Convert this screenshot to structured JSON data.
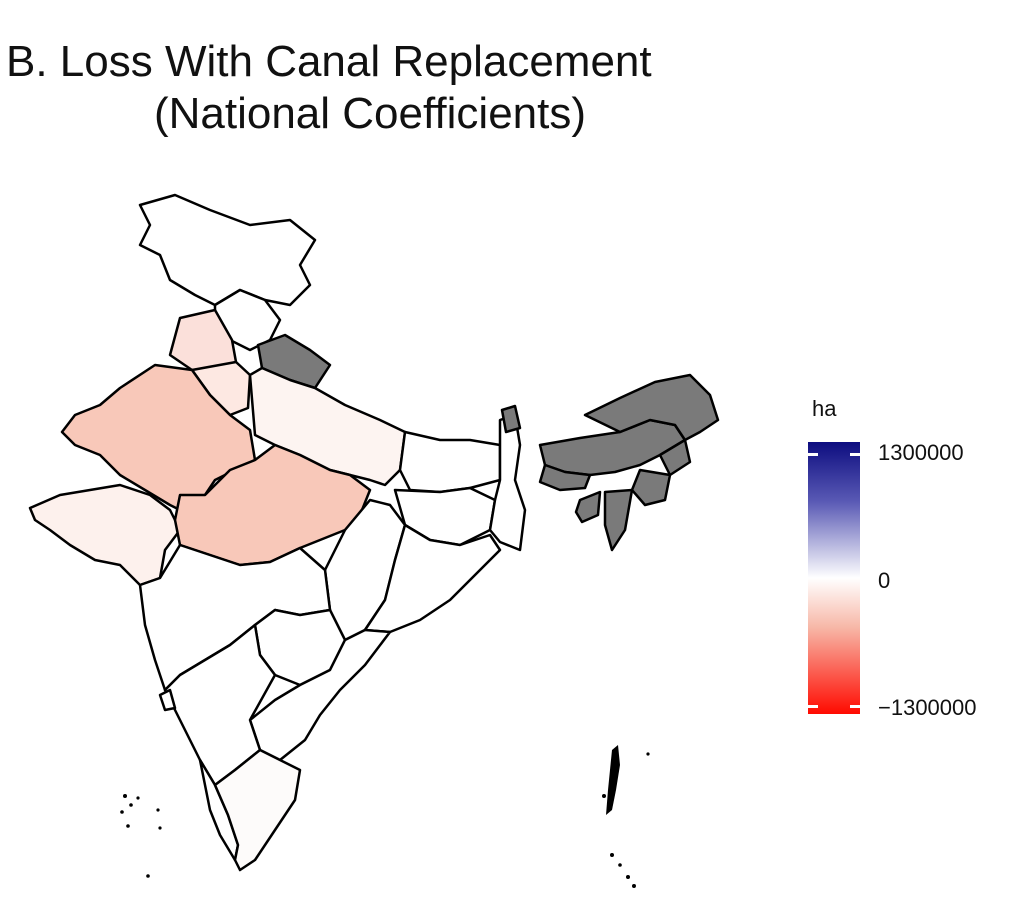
{
  "title_line1": "B. Loss With Canal Replacement",
  "title_line2": "(National Coefficients)",
  "legend": {
    "title": "ha",
    "max_label": "1300000",
    "mid_label": "0",
    "min_label": "−1300000",
    "high_color": "#0d0d80",
    "mid_color": "#ffffff",
    "low_color": "#ff0a00",
    "na_color": "#7a7a7a"
  }
}
